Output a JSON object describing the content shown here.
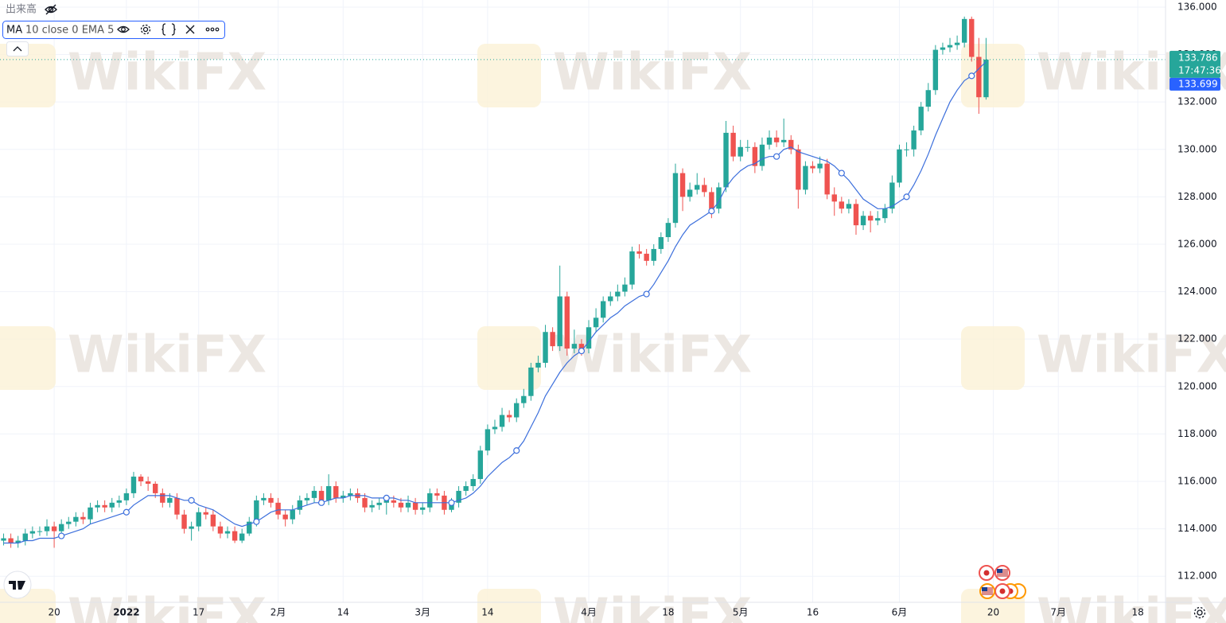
{
  "chart_data": {
    "type": "candlestick",
    "watermark": "WikiFX",
    "volume_label": "出来高",
    "indicator_name": "MA",
    "indicator_params": "10 close 0 EMA 5",
    "ylim": [
      110.9,
      136.3
    ],
    "yticks": [
      {
        "value": 112,
        "label": "112.000"
      },
      {
        "value": 114,
        "label": "114.000"
      },
      {
        "value": 116,
        "label": "116.000"
      },
      {
        "value": 118,
        "label": "118.000"
      },
      {
        "value": 120,
        "label": "120.000"
      },
      {
        "value": 122,
        "label": "122.000"
      },
      {
        "value": 124,
        "label": "124.000"
      },
      {
        "value": 126,
        "label": "126.000"
      },
      {
        "value": 128,
        "label": "128.000"
      },
      {
        "value": 130,
        "label": "130.000"
      },
      {
        "value": 132,
        "label": "132.000"
      },
      {
        "value": 134,
        "label": "134.000"
      },
      {
        "value": 136,
        "label": "136.000"
      }
    ],
    "grid": true,
    "up_color": "#26a69a",
    "down_color": "#ef5350",
    "ema_color": "#3c6fdc",
    "categories": [
      null,
      null,
      null,
      null,
      null,
      null,
      null,
      "20",
      null,
      null,
      null,
      null,
      null,
      null,
      null,
      null,
      null,
      "2022",
      null,
      null,
      null,
      null,
      null,
      null,
      null,
      null,
      null,
      "17",
      null,
      null,
      null,
      null,
      null,
      null,
      null,
      null,
      null,
      null,
      "2月",
      null,
      null,
      null,
      null,
      null,
      null,
      null,
      null,
      "14",
      null,
      null,
      null,
      null,
      null,
      null,
      null,
      null,
      null,
      null,
      "3月",
      null,
      null,
      null,
      null,
      null,
      null,
      null,
      null,
      "14",
      null,
      null,
      null,
      null,
      null,
      null,
      null,
      null,
      null,
      null,
      null,
      null,
      null,
      "4月",
      null,
      null,
      null,
      null,
      null,
      null,
      null,
      null,
      null,
      null,
      "18",
      null,
      null,
      null,
      null,
      null,
      null,
      null,
      null,
      null,
      "5月",
      null,
      null,
      null,
      null,
      null,
      null,
      null,
      null,
      null,
      "16",
      null,
      null,
      null,
      null,
      null,
      null,
      null,
      null,
      null,
      null,
      null,
      "6月",
      null,
      null,
      null,
      null,
      null,
      null,
      null,
      null,
      null,
      null,
      null,
      null,
      "20",
      null,
      null,
      null,
      null,
      null,
      null,
      null,
      null,
      "7月",
      null,
      null,
      null,
      null,
      null,
      null,
      null,
      null,
      null,
      null,
      "18",
      null,
      null
    ],
    "candles": {
      "open": [
        113.5,
        113.6,
        113.4,
        113.5,
        113.8,
        113.9,
        113.9,
        114.1,
        113.9,
        114.2,
        114.3,
        114.5,
        114.4,
        114.9,
        115.0,
        114.9,
        115.1,
        115.2,
        115.5,
        116.2,
        116.0,
        115.9,
        115.5,
        115.1,
        115.3,
        114.6,
        114.0,
        114.1,
        114.7,
        114.6,
        114.1,
        113.8,
        113.9,
        113.5,
        113.8,
        114.3,
        115.2,
        115.3,
        115.1,
        114.6,
        114.4,
        114.8,
        115.2,
        115.3,
        115.6,
        115.2,
        115.8,
        115.3,
        115.4,
        115.5,
        115.3,
        114.9,
        115.0,
        115.1,
        115.2,
        115.1,
        114.9,
        115.1,
        114.8,
        114.9,
        115.5,
        115.4,
        114.8,
        115.1,
        115.6,
        115.8,
        116.1,
        117.3,
        118.2,
        118.3,
        118.8,
        118.7,
        119.3,
        119.6,
        120.8,
        121.0,
        122.3,
        121.7,
        123.8,
        121.6,
        121.8,
        121.6,
        122.5,
        122.9,
        123.6,
        123.8,
        124.0,
        124.3,
        125.7,
        125.6,
        125.3,
        125.8,
        126.3,
        126.9,
        129.0,
        128.0,
        128.3,
        128.5,
        128.2,
        127.5,
        128.4,
        130.7,
        129.7,
        130.1,
        130.1,
        129.3,
        130.2,
        130.5,
        130.3,
        130.4,
        130.0,
        128.3,
        129.3,
        129.2,
        129.4,
        128.1,
        127.8,
        127.5,
        127.7,
        126.8,
        127.2,
        127.0,
        127.1,
        127.5,
        128.6,
        130.0,
        130.0,
        130.8,
        131.8,
        132.5,
        134.2,
        134.3,
        134.4,
        134.5,
        135.5,
        133.9,
        132.2,
        null,
        null,
        null,
        null,
        null,
        null,
        null,
        null,
        null,
        null,
        null,
        null,
        null,
        null,
        null,
        null,
        null,
        null,
        null,
        null,
        null,
        null,
        null
      ],
      "high": [
        113.8,
        113.8,
        113.7,
        114.0,
        114.1,
        114.1,
        114.4,
        114.3,
        114.4,
        114.5,
        114.7,
        114.7,
        115.1,
        115.2,
        115.2,
        115.3,
        115.4,
        115.7,
        116.4,
        116.3,
        116.2,
        116.0,
        115.7,
        115.5,
        115.5,
        114.8,
        114.3,
        114.9,
        114.9,
        114.8,
        114.3,
        114.1,
        114.1,
        114.0,
        114.5,
        115.4,
        115.5,
        115.5,
        115.3,
        114.8,
        115.0,
        115.4,
        115.5,
        115.8,
        115.8,
        116.3,
        116.0,
        115.6,
        115.7,
        115.7,
        115.5,
        115.2,
        115.3,
        115.4,
        115.4,
        115.3,
        115.4,
        115.3,
        115.1,
        115.7,
        115.7,
        115.6,
        115.3,
        115.8,
        116.0,
        116.3,
        117.5,
        118.4,
        118.6,
        119.1,
        119.0,
        119.5,
        119.9,
        121.0,
        121.3,
        122.6,
        122.5,
        125.1,
        124.0,
        122.4,
        122.0,
        122.8,
        123.3,
        123.8,
        124.0,
        124.3,
        124.6,
        125.9,
        126.0,
        125.8,
        126.0,
        126.5,
        127.1,
        129.4,
        129.2,
        128.6,
        129.0,
        128.8,
        128.4,
        128.6,
        131.2,
        131.0,
        130.4,
        130.4,
        130.3,
        130.5,
        130.8,
        130.8,
        131.3,
        130.6,
        130.2,
        129.5,
        129.5,
        129.7,
        129.6,
        128.4,
        128.0,
        127.9,
        127.9,
        127.4,
        127.4,
        127.4,
        127.7,
        128.9,
        130.2,
        130.3,
        131.0,
        132.0,
        132.8,
        134.4,
        134.5,
        134.7,
        134.8,
        135.6,
        135.6,
        134.7,
        134.7,
        null,
        null,
        null,
        null,
        null,
        null,
        null,
        null,
        null,
        null,
        null,
        null,
        null,
        null,
        null,
        null,
        null,
        null,
        null,
        null,
        null,
        null,
        null
      ],
      "low": [
        113.3,
        113.2,
        113.2,
        113.3,
        113.6,
        113.7,
        113.7,
        113.2,
        113.7,
        114.0,
        114.1,
        114.2,
        114.2,
        114.7,
        114.7,
        114.7,
        114.9,
        115.0,
        115.3,
        115.8,
        115.6,
        115.3,
        114.9,
        114.9,
        114.4,
        113.8,
        113.5,
        113.9,
        114.4,
        113.9,
        113.6,
        113.6,
        113.4,
        113.4,
        113.7,
        114.1,
        115.0,
        114.9,
        114.4,
        114.1,
        114.2,
        114.6,
        115.0,
        115.1,
        115.0,
        115.0,
        115.1,
        115.1,
        115.2,
        115.1,
        114.7,
        114.7,
        114.8,
        114.6,
        114.9,
        114.7,
        114.7,
        114.6,
        114.6,
        114.7,
        115.2,
        114.6,
        114.7,
        114.9,
        115.4,
        115.6,
        115.9,
        117.1,
        118.0,
        118.1,
        118.5,
        118.5,
        119.1,
        119.4,
        120.6,
        120.8,
        121.5,
        121.5,
        121.3,
        121.4,
        121.3,
        121.4,
        122.3,
        122.7,
        123.4,
        123.6,
        123.8,
        124.1,
        125.4,
        125.1,
        125.1,
        125.6,
        126.1,
        126.7,
        127.4,
        127.8,
        128.1,
        128.0,
        127.1,
        127.3,
        128.2,
        129.5,
        129.5,
        129.9,
        129.0,
        129.1,
        130.0,
        130.1,
        130.1,
        129.8,
        127.5,
        128.1,
        129.0,
        129.0,
        127.9,
        127.2,
        127.3,
        127.3,
        126.4,
        126.6,
        126.5,
        126.8,
        126.9,
        127.3,
        128.4,
        129.7,
        129.7,
        130.6,
        131.6,
        132.3,
        134.0,
        134.1,
        134.2,
        134.3,
        133.7,
        131.5,
        132.1,
        null,
        null,
        null,
        null,
        null,
        null,
        null,
        null,
        null,
        null,
        null,
        null,
        null,
        null,
        null,
        null,
        null,
        null,
        null,
        null,
        null,
        null,
        null
      ],
      "close": [
        113.6,
        113.4,
        113.5,
        113.8,
        113.9,
        113.9,
        114.1,
        113.9,
        114.2,
        114.3,
        114.5,
        114.4,
        114.9,
        115.0,
        114.9,
        115.1,
        115.2,
        115.5,
        116.2,
        116.0,
        115.9,
        115.5,
        115.1,
        115.3,
        114.6,
        114.0,
        114.1,
        114.7,
        114.6,
        114.1,
        113.8,
        113.9,
        113.5,
        113.8,
        114.3,
        115.2,
        115.3,
        115.1,
        114.6,
        114.4,
        114.8,
        115.2,
        115.3,
        115.6,
        115.2,
        115.8,
        115.3,
        115.4,
        115.5,
        115.3,
        114.9,
        115.0,
        115.1,
        115.2,
        115.1,
        114.9,
        115.1,
        114.8,
        114.9,
        115.5,
        115.4,
        114.8,
        115.1,
        115.6,
        115.8,
        116.1,
        117.3,
        118.2,
        118.3,
        118.8,
        118.7,
        119.3,
        119.6,
        120.8,
        121.0,
        122.3,
        121.7,
        123.8,
        121.6,
        121.8,
        121.6,
        122.5,
        122.9,
        123.6,
        123.8,
        124.0,
        124.3,
        125.7,
        125.6,
        125.3,
        125.8,
        126.3,
        126.9,
        129.0,
        128.0,
        128.3,
        128.5,
        128.2,
        127.5,
        128.4,
        130.7,
        129.7,
        130.1,
        130.1,
        129.3,
        130.2,
        130.5,
        130.3,
        130.4,
        130.0,
        128.3,
        129.3,
        129.2,
        129.4,
        128.1,
        127.8,
        127.5,
        127.7,
        126.8,
        127.2,
        127.0,
        127.1,
        127.5,
        128.6,
        130.0,
        130.0,
        130.8,
        131.8,
        132.5,
        134.2,
        134.3,
        134.4,
        134.5,
        135.5,
        133.9,
        132.2,
        133.786,
        null,
        null,
        null,
        null,
        null,
        null,
        null,
        null,
        null,
        null,
        null,
        null,
        null,
        null,
        null,
        null,
        null,
        null,
        null,
        null,
        null,
        null,
        null
      ]
    },
    "ema": [
      113.4,
      113.4,
      113.4,
      113.5,
      113.5,
      113.6,
      113.6,
      113.6,
      113.7,
      113.8,
      113.9,
      114.0,
      114.2,
      114.3,
      114.4,
      114.5,
      114.6,
      114.7,
      115.0,
      115.2,
      115.4,
      115.4,
      115.4,
      115.4,
      115.3,
      115.2,
      115.2,
      115.0,
      114.9,
      114.8,
      114.6,
      114.4,
      114.2,
      114.1,
      114.2,
      114.3,
      114.5,
      114.7,
      114.8,
      114.8,
      114.8,
      114.9,
      115.0,
      115.1,
      115.1,
      115.2,
      115.3,
      115.3,
      115.4,
      115.4,
      115.4,
      115.3,
      115.3,
      115.3,
      115.3,
      115.2,
      115.2,
      115.1,
      115.1,
      115.1,
      115.1,
      115.1,
      115.1,
      115.2,
      115.3,
      115.5,
      115.8,
      116.2,
      116.5,
      116.8,
      117.0,
      117.3,
      117.7,
      118.3,
      118.9,
      119.6,
      120.1,
      120.6,
      121.0,
      121.3,
      121.5,
      121.9,
      122.3,
      122.6,
      122.9,
      123.1,
      123.4,
      123.6,
      123.8,
      123.9,
      124.3,
      124.8,
      125.3,
      125.9,
      126.4,
      126.8,
      127.0,
      127.2,
      127.4,
      127.8,
      128.4,
      128.8,
      129.1,
      129.3,
      129.4,
      129.6,
      129.7,
      129.7,
      130.0,
      130.1,
      129.9,
      129.8,
      129.7,
      129.6,
      129.5,
      129.3,
      129.0,
      128.7,
      128.3,
      127.9,
      127.7,
      127.5,
      127.5,
      127.6,
      127.8,
      128.0,
      128.5,
      129.1,
      129.8,
      130.6,
      131.3,
      132.0,
      132.5,
      132.9,
      133.1,
      133.4,
      133.699,
      null,
      null,
      null,
      null,
      null,
      null,
      null,
      null,
      null,
      null,
      null,
      null,
      null,
      null,
      null,
      null,
      null,
      null,
      null,
      null,
      null,
      null,
      null
    ],
    "last_price": {
      "value": 133.786,
      "label": "133.786"
    },
    "countdown": "17:47:36",
    "ema_last": {
      "value": 133.699,
      "label": "133.699"
    }
  }
}
